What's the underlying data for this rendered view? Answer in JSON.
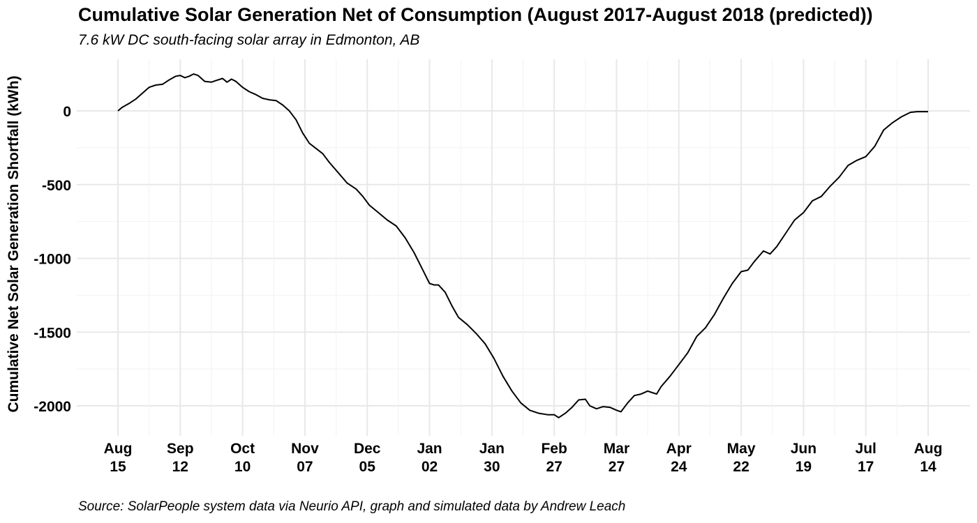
{
  "chart_data": {
    "type": "line",
    "title": "Cumulative Solar Generation Net of Consumption (August 2017-August 2018 (predicted))",
    "subtitle": "7.6 kW DC south-facing solar array in Edmonton, AB",
    "caption": "Source: SolarPeople system data via Neurio API, graph and simulated data by Andrew Leach",
    "xlabel": "",
    "ylabel": "Cumulative Net Solar Generation Shortfall (kWh)",
    "xlim": [
      "2017-08-15",
      "2018-08-14"
    ],
    "ylim": [
      -2100,
      300
    ],
    "grid": true,
    "x_ticks": [
      {
        "date": "2017-08-15",
        "month": "Aug",
        "day": "15"
      },
      {
        "date": "2017-09-12",
        "month": "Sep",
        "day": "12"
      },
      {
        "date": "2017-10-10",
        "month": "Oct",
        "day": "10"
      },
      {
        "date": "2017-11-07",
        "month": "Nov",
        "day": "07"
      },
      {
        "date": "2017-12-05",
        "month": "Dec",
        "day": "05"
      },
      {
        "date": "2018-01-02",
        "month": "Jan",
        "day": "02"
      },
      {
        "date": "2018-01-30",
        "month": "Jan",
        "day": "30"
      },
      {
        "date": "2018-02-27",
        "month": "Feb",
        "day": "27"
      },
      {
        "date": "2018-03-27",
        "month": "Mar",
        "day": "27"
      },
      {
        "date": "2018-04-24",
        "month": "Apr",
        "day": "24"
      },
      {
        "date": "2018-05-22",
        "month": "May",
        "day": "22"
      },
      {
        "date": "2018-06-19",
        "month": "Jun",
        "day": "19"
      },
      {
        "date": "2018-07-17",
        "month": "Jul",
        "day": "17"
      },
      {
        "date": "2018-08-14",
        "month": "Aug",
        "day": "14"
      }
    ],
    "y_ticks": [
      {
        "value": 0,
        "label": "0"
      },
      {
        "value": -500,
        "label": "-500"
      },
      {
        "value": -1000,
        "label": "-1000"
      },
      {
        "value": -1500,
        "label": "-1500"
      },
      {
        "value": -2000,
        "label": "-2000"
      }
    ],
    "series": [
      {
        "color": "#000000",
        "points": [
          [
            "2017-08-15",
            0
          ],
          [
            "2017-08-17",
            25
          ],
          [
            "2017-08-20",
            50
          ],
          [
            "2017-08-23",
            80
          ],
          [
            "2017-08-26",
            120
          ],
          [
            "2017-08-29",
            160
          ],
          [
            "2017-09-01",
            175
          ],
          [
            "2017-09-04",
            180
          ],
          [
            "2017-09-07",
            210
          ],
          [
            "2017-09-10",
            235
          ],
          [
            "2017-09-12",
            240
          ],
          [
            "2017-09-14",
            225
          ],
          [
            "2017-09-16",
            235
          ],
          [
            "2017-09-18",
            250
          ],
          [
            "2017-09-20",
            240
          ],
          [
            "2017-09-23",
            200
          ],
          [
            "2017-09-26",
            195
          ],
          [
            "2017-09-28",
            205
          ],
          [
            "2017-10-01",
            220
          ],
          [
            "2017-10-03",
            195
          ],
          [
            "2017-10-05",
            215
          ],
          [
            "2017-10-07",
            200
          ],
          [
            "2017-10-10",
            160
          ],
          [
            "2017-10-13",
            130
          ],
          [
            "2017-10-16",
            110
          ],
          [
            "2017-10-19",
            85
          ],
          [
            "2017-10-22",
            75
          ],
          [
            "2017-10-25",
            70
          ],
          [
            "2017-10-28",
            40
          ],
          [
            "2017-10-31",
            0
          ],
          [
            "2017-11-03",
            -60
          ],
          [
            "2017-11-06",
            -150
          ],
          [
            "2017-11-09",
            -220
          ],
          [
            "2017-11-12",
            -255
          ],
          [
            "2017-11-15",
            -290
          ],
          [
            "2017-11-18",
            -350
          ],
          [
            "2017-11-22",
            -420
          ],
          [
            "2017-11-26",
            -490
          ],
          [
            "2017-11-30",
            -530
          ],
          [
            "2017-12-03",
            -580
          ],
          [
            "2017-12-06",
            -640
          ],
          [
            "2017-12-10",
            -690
          ],
          [
            "2017-12-14",
            -740
          ],
          [
            "2017-12-18",
            -780
          ],
          [
            "2017-12-22",
            -860
          ],
          [
            "2017-12-26",
            -960
          ],
          [
            "2017-12-30",
            -1080
          ],
          [
            "2018-01-02",
            -1170
          ],
          [
            "2018-01-04",
            -1180
          ],
          [
            "2018-01-06",
            -1180
          ],
          [
            "2018-01-09",
            -1230
          ],
          [
            "2018-01-12",
            -1320
          ],
          [
            "2018-01-15",
            -1400
          ],
          [
            "2018-01-19",
            -1450
          ],
          [
            "2018-01-23",
            -1510
          ],
          [
            "2018-01-27",
            -1580
          ],
          [
            "2018-01-31",
            -1680
          ],
          [
            "2018-02-04",
            -1800
          ],
          [
            "2018-02-08",
            -1900
          ],
          [
            "2018-02-12",
            -1980
          ],
          [
            "2018-02-16",
            -2030
          ],
          [
            "2018-02-20",
            -2050
          ],
          [
            "2018-02-24",
            -2060
          ],
          [
            "2018-02-27",
            -2060
          ],
          [
            "2018-03-01",
            -2080
          ],
          [
            "2018-03-04",
            -2050
          ],
          [
            "2018-03-07",
            -2010
          ],
          [
            "2018-03-10",
            -1960
          ],
          [
            "2018-03-13",
            -1955
          ],
          [
            "2018-03-15",
            -2000
          ],
          [
            "2018-03-18",
            -2020
          ],
          [
            "2018-03-21",
            -2005
          ],
          [
            "2018-03-24",
            -2010
          ],
          [
            "2018-03-27",
            -2030
          ],
          [
            "2018-03-29",
            -2040
          ],
          [
            "2018-04-01",
            -1980
          ],
          [
            "2018-04-04",
            -1930
          ],
          [
            "2018-04-07",
            -1920
          ],
          [
            "2018-04-10",
            -1900
          ],
          [
            "2018-04-12",
            -1910
          ],
          [
            "2018-04-14",
            -1920
          ],
          [
            "2018-04-16",
            -1870
          ],
          [
            "2018-04-20",
            -1800
          ],
          [
            "2018-04-24",
            -1720
          ],
          [
            "2018-04-28",
            -1640
          ],
          [
            "2018-05-02",
            -1530
          ],
          [
            "2018-05-06",
            -1470
          ],
          [
            "2018-05-10",
            -1380
          ],
          [
            "2018-05-14",
            -1270
          ],
          [
            "2018-05-18",
            -1170
          ],
          [
            "2018-05-22",
            -1090
          ],
          [
            "2018-05-25",
            -1080
          ],
          [
            "2018-05-28",
            -1020
          ],
          [
            "2018-06-01",
            -950
          ],
          [
            "2018-06-04",
            -970
          ],
          [
            "2018-06-07",
            -920
          ],
          [
            "2018-06-11",
            -830
          ],
          [
            "2018-06-15",
            -740
          ],
          [
            "2018-06-19",
            -690
          ],
          [
            "2018-06-23",
            -610
          ],
          [
            "2018-06-27",
            -580
          ],
          [
            "2018-07-01",
            -510
          ],
          [
            "2018-07-05",
            -450
          ],
          [
            "2018-07-09",
            -370
          ],
          [
            "2018-07-13",
            -335
          ],
          [
            "2018-07-17",
            -310
          ],
          [
            "2018-07-21",
            -240
          ],
          [
            "2018-07-25",
            -130
          ],
          [
            "2018-07-29",
            -80
          ],
          [
            "2018-08-02",
            -40
          ],
          [
            "2018-08-06",
            -10
          ],
          [
            "2018-08-09",
            -5
          ],
          [
            "2018-08-14",
            -5
          ]
        ]
      }
    ]
  }
}
